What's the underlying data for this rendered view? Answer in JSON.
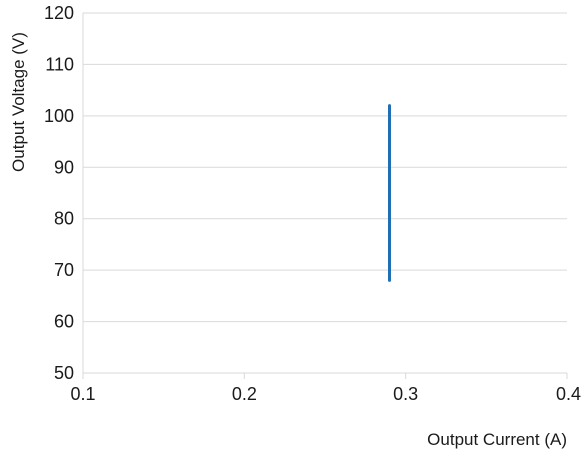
{
  "chart_data": {
    "type": "line",
    "title": "",
    "xlabel": "Output Current (A)",
    "ylabel": "Output Voltage (V)",
    "xlim": [
      0.1,
      0.4
    ],
    "ylim": [
      50,
      120
    ],
    "x_ticks": [
      "0.1",
      "0.2",
      "0.3",
      "0.4"
    ],
    "y_ticks": [
      "50",
      "60",
      "70",
      "80",
      "90",
      "100",
      "110",
      "120"
    ],
    "x_tick_values": [
      0.1,
      0.2,
      0.3,
      0.4
    ],
    "y_tick_values": [
      50,
      60,
      70,
      80,
      90,
      100,
      110,
      120
    ],
    "grid": true,
    "legend": "none",
    "series": [
      {
        "color": "#1f6fb5",
        "x": [
          0.29,
          0.29
        ],
        "y": [
          68,
          102
        ]
      }
    ]
  }
}
